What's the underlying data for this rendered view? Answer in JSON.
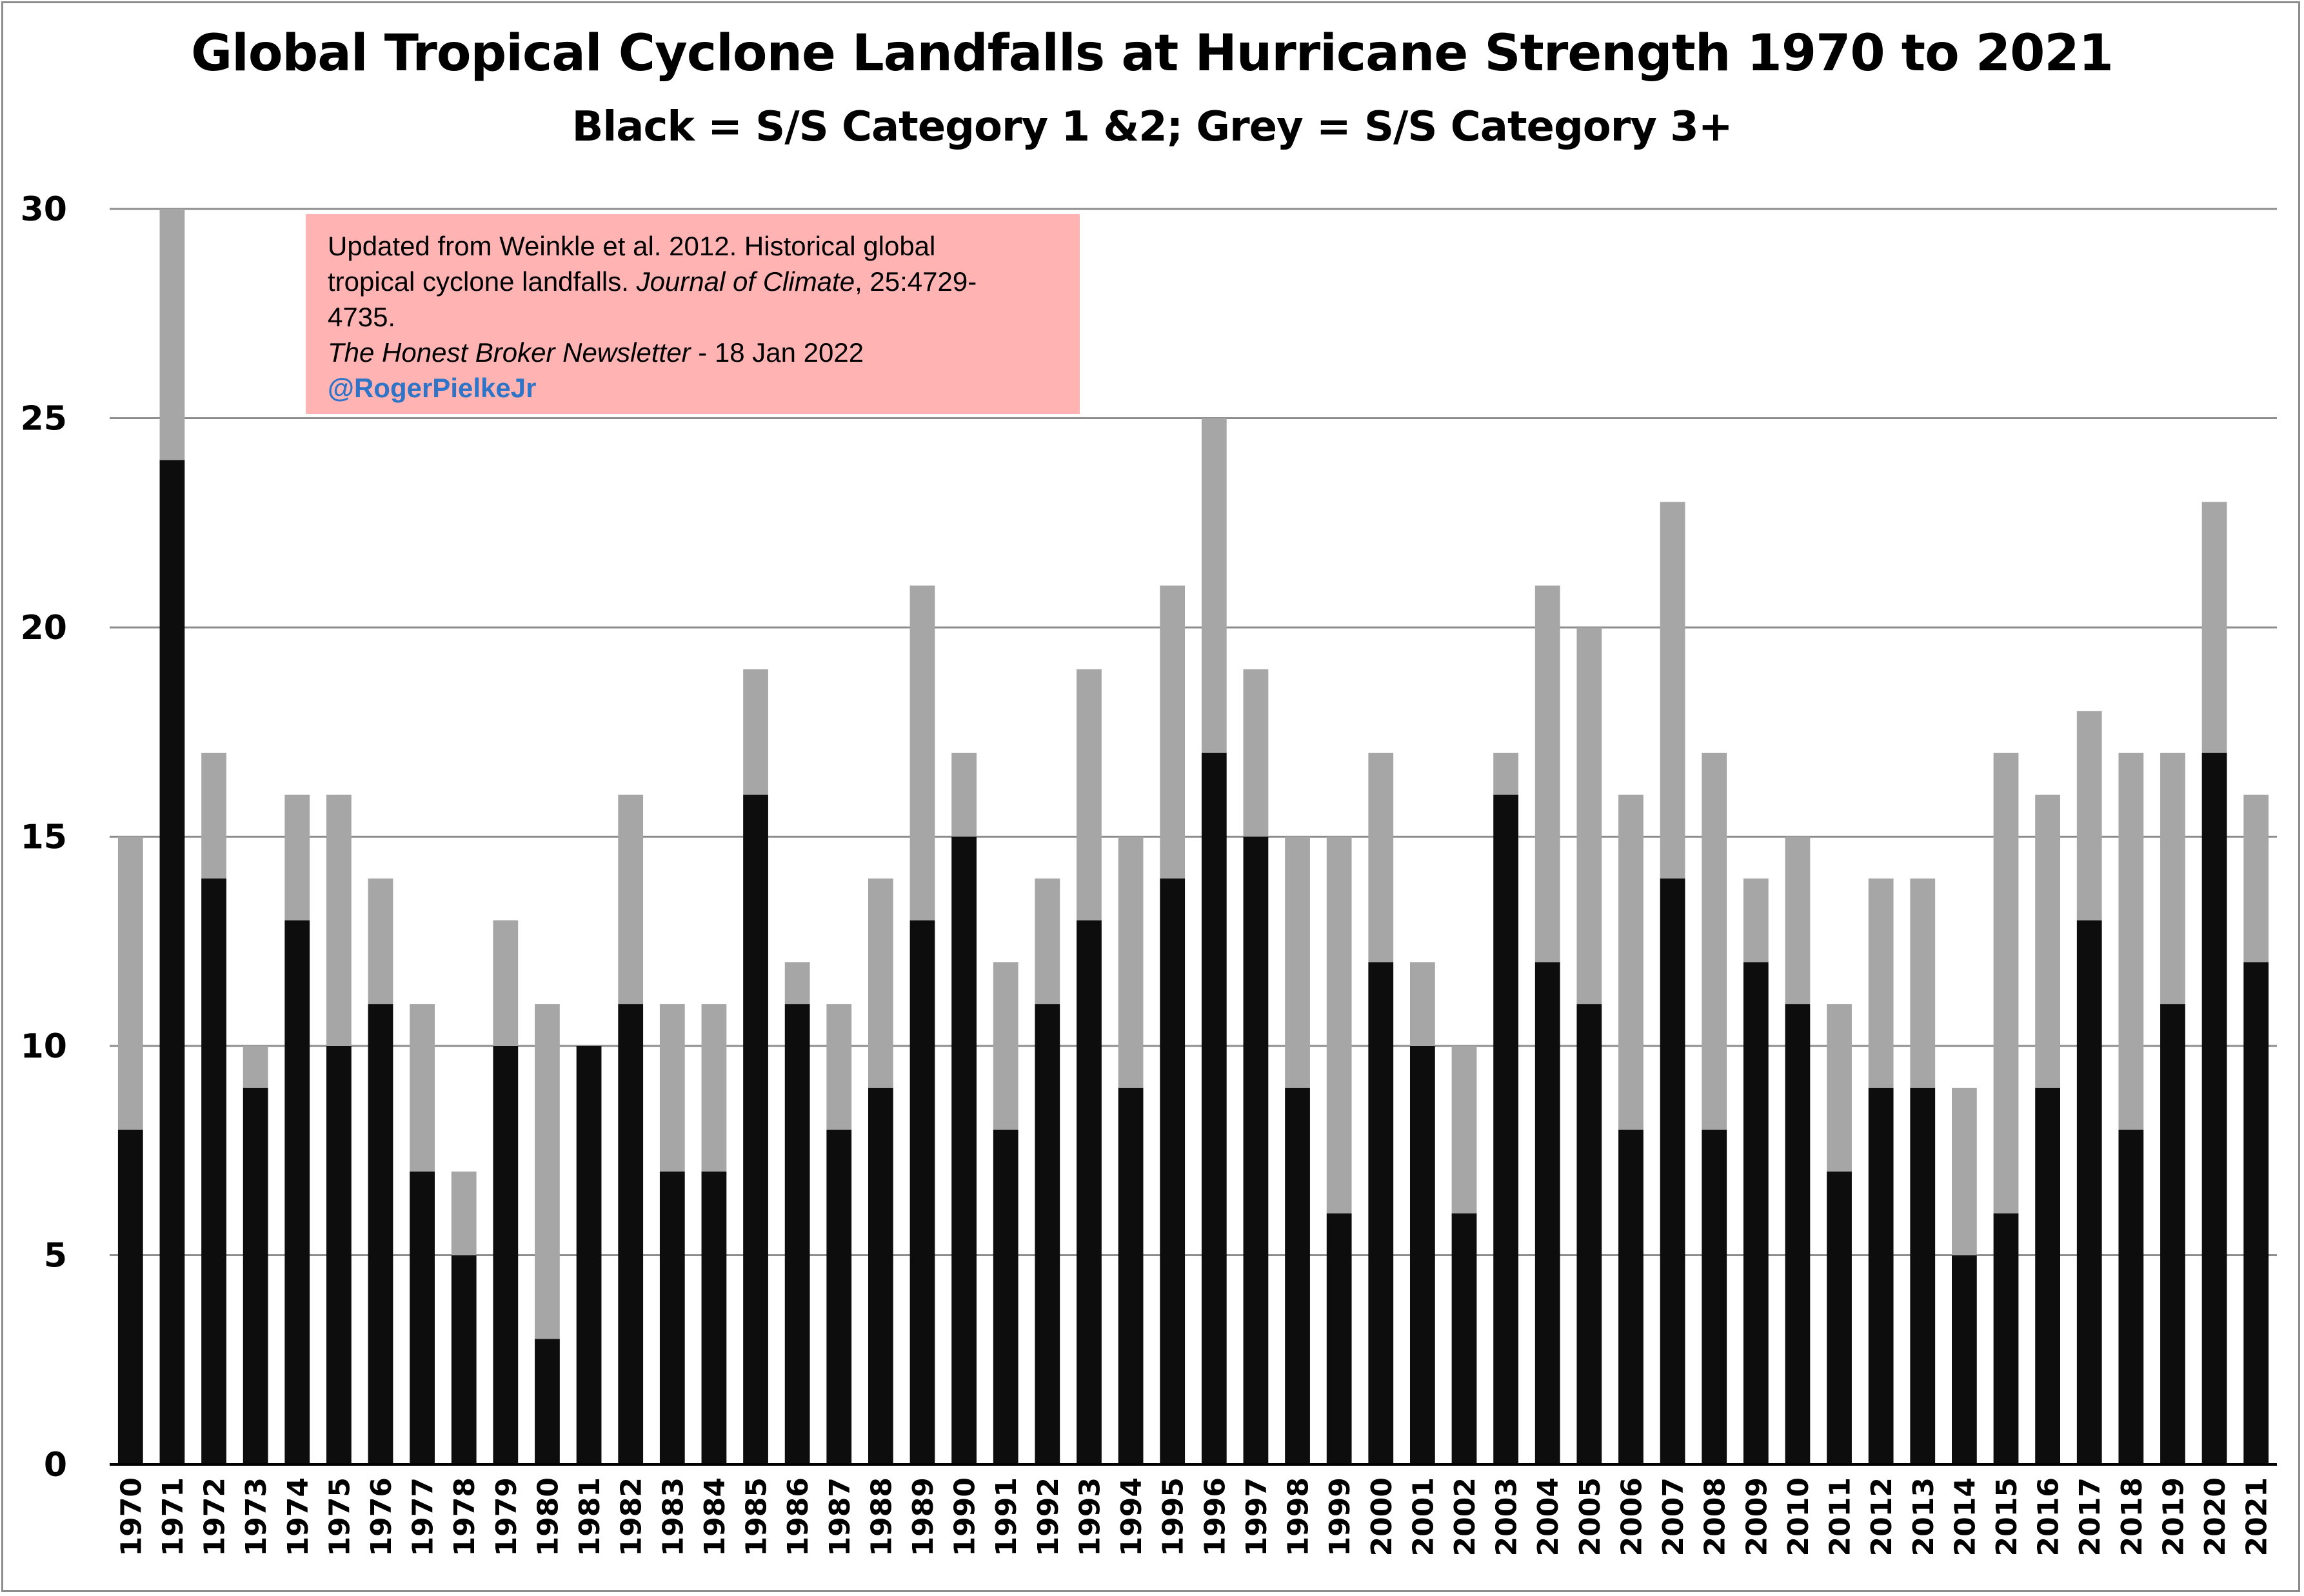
{
  "chart_data": {
    "type": "bar",
    "stacked": true,
    "title": "Global Tropical Cyclone Landfalls at Hurricane Strength 1970 to 2021",
    "subtitle": "Black = S/S Category 1 &2; Grey = S/S Category 3+",
    "ylim": [
      0,
      30
    ],
    "yticks": [
      0,
      5,
      10,
      15,
      20,
      25,
      30
    ],
    "grid": true,
    "colors": {
      "cat12": "#0d0d0d",
      "cat3plus": "#a6a6a6",
      "grid": "#8c8c8c"
    },
    "categories": [
      "1970",
      "1971",
      "1972",
      "1973",
      "1974",
      "1975",
      "1976",
      "1977",
      "1978",
      "1979",
      "1980",
      "1981",
      "1982",
      "1983",
      "1984",
      "1985",
      "1986",
      "1987",
      "1988",
      "1989",
      "1990",
      "1991",
      "1992",
      "1993",
      "1994",
      "1995",
      "1996",
      "1997",
      "1998",
      "1999",
      "2000",
      "2001",
      "2002",
      "2003",
      "2004",
      "2005",
      "2006",
      "2007",
      "2008",
      "2009",
      "2010",
      "2011",
      "2012",
      "2013",
      "2014",
      "2015",
      "2016",
      "2017",
      "2018",
      "2019",
      "2020",
      "2021"
    ],
    "series": [
      {
        "values": [
          8,
          24,
          14,
          9,
          13,
          10,
          11,
          7,
          5,
          10,
          3,
          10,
          11,
          7,
          7,
          16,
          11,
          8,
          9,
          13,
          15,
          8,
          11,
          13,
          9,
          14,
          17,
          15,
          9,
          6,
          12,
          10,
          6,
          16,
          12,
          11,
          8,
          14,
          8,
          12,
          11,
          7,
          9,
          9,
          5,
          6,
          9,
          13,
          8,
          11,
          17,
          12
        ]
      },
      {
        "values": [
          7,
          6,
          3,
          1,
          3,
          6,
          3,
          4,
          2,
          3,
          8,
          0,
          5,
          4,
          4,
          3,
          1,
          3,
          5,
          8,
          2,
          4,
          3,
          6,
          6,
          7,
          8,
          4,
          6,
          9,
          5,
          2,
          4,
          1,
          9,
          9,
          8,
          9,
          9,
          2,
          4,
          4,
          5,
          5,
          4,
          11,
          7,
          5,
          9,
          6,
          6,
          4
        ]
      }
    ]
  },
  "note": {
    "line1": "Updated from Weinkle et al. 2012. Historical global",
    "line2a": "tropical cyclone landfalls. ",
    "line2b": "Journal of Climate",
    "line2c": ", 25:4729-",
    "line3": "4735.",
    "line4a": "The Honest Broker Newsletter",
    "line4b": " - 18 Jan 2022",
    "line5": "@RogerPielkeJr"
  }
}
